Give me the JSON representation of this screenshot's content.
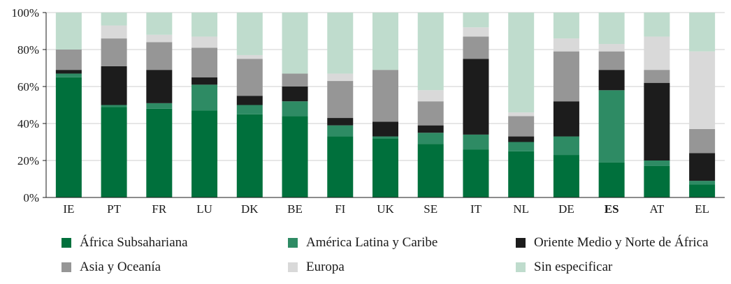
{
  "chart_data": {
    "type": "bar",
    "stacked": true,
    "normalized": true,
    "categories": [
      "IE",
      "PT",
      "FR",
      "LU",
      "DK",
      "BE",
      "FI",
      "UK",
      "SE",
      "IT",
      "NL",
      "DE",
      "ES",
      "AT",
      "EL"
    ],
    "bold_categories": [
      "ES"
    ],
    "ylim": [
      0,
      100
    ],
    "yticks": [
      "0%",
      "20%",
      "40%",
      "60%",
      "80%",
      "100%"
    ],
    "ytick_values": [
      0,
      20,
      40,
      60,
      80,
      100
    ],
    "grid": true,
    "legend_position": "bottom",
    "title": "",
    "xlabel": "",
    "ylabel": "",
    "series": [
      {
        "name": "África Subsahariana",
        "color": "#00703c",
        "values": [
          65,
          49,
          48,
          47,
          45,
          44,
          33,
          32,
          29,
          26,
          25,
          23,
          19,
          17,
          7
        ]
      },
      {
        "name": "América Latina y Caribe",
        "color": "#2e8b64",
        "values": [
          2,
          1,
          3,
          14,
          5,
          8,
          6,
          1,
          6,
          8,
          5,
          10,
          39,
          3,
          2
        ]
      },
      {
        "name": "Oriente Medio y Norte de África",
        "color": "#1c1c1c",
        "values": [
          2,
          21,
          18,
          4,
          5,
          8,
          4,
          8,
          4,
          41,
          3,
          19,
          11,
          42,
          15
        ]
      },
      {
        "name": "Asia y Oceanía",
        "color": "#969696",
        "values": [
          11,
          15,
          15,
          16,
          20,
          7,
          20,
          28,
          13,
          12,
          11,
          27,
          10,
          7,
          13
        ]
      },
      {
        "name": "Europa",
        "color": "#d9d9d9",
        "values": [
          0,
          7,
          4,
          6,
          2,
          0,
          4,
          0,
          6,
          5,
          2,
          7,
          4,
          18,
          42
        ]
      },
      {
        "name": "Sin especificar",
        "color": "#bfdccd",
        "values": [
          20,
          7,
          12,
          13,
          23,
          33,
          33,
          31,
          42,
          8,
          54,
          14,
          17,
          13,
          21
        ]
      }
    ]
  }
}
